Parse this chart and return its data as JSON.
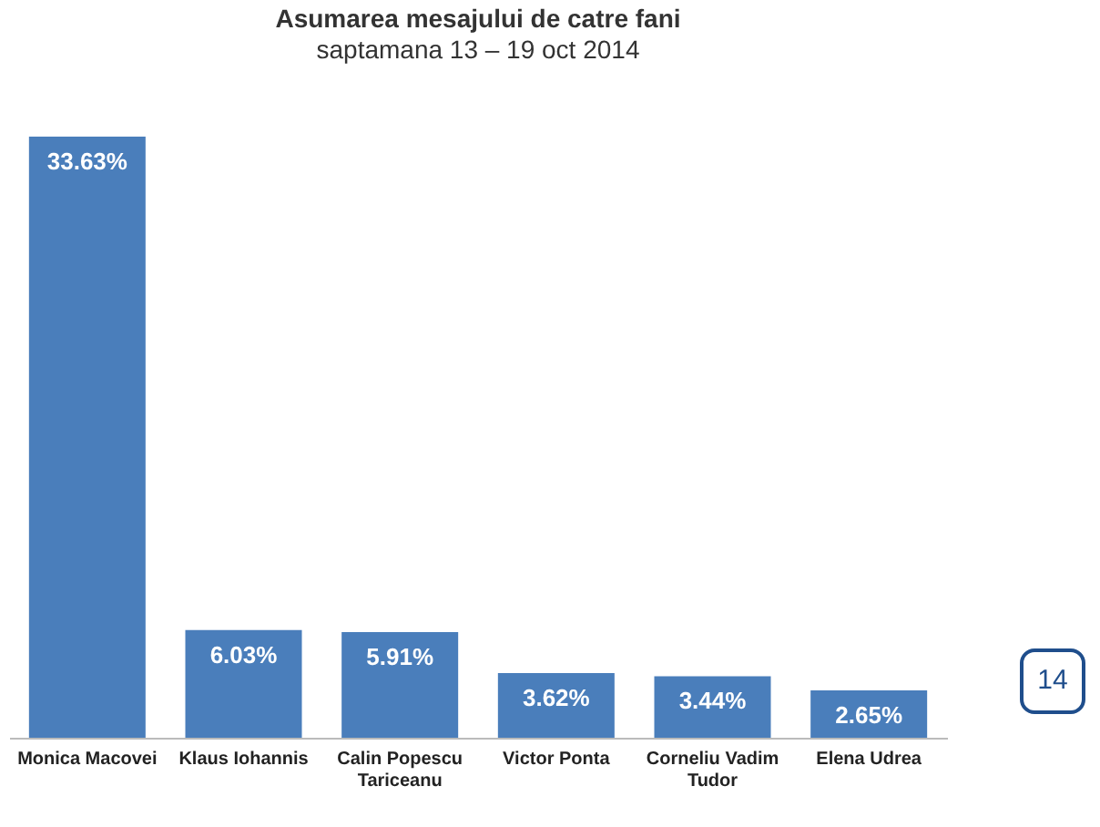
{
  "chart_data": {
    "type": "bar",
    "title": "Asumarea mesajului de catre fani",
    "subtitle": "saptamana 13 – 19 oct 2014",
    "categories": [
      "Monica Macovei",
      "Klaus Iohannis",
      "Calin Popescu Tariceanu",
      "Victor Ponta",
      "Corneliu Vadim Tudor",
      "Elena Udrea"
    ],
    "values": [
      33.63,
      6.03,
      5.91,
      3.62,
      3.44,
      2.65
    ],
    "value_labels": [
      "33.63%",
      "6.03%",
      "5.91%",
      "3.62%",
      "3.44%",
      "2.65%"
    ],
    "color": "#4a7ebb",
    "annotations": [
      "14"
    ]
  }
}
